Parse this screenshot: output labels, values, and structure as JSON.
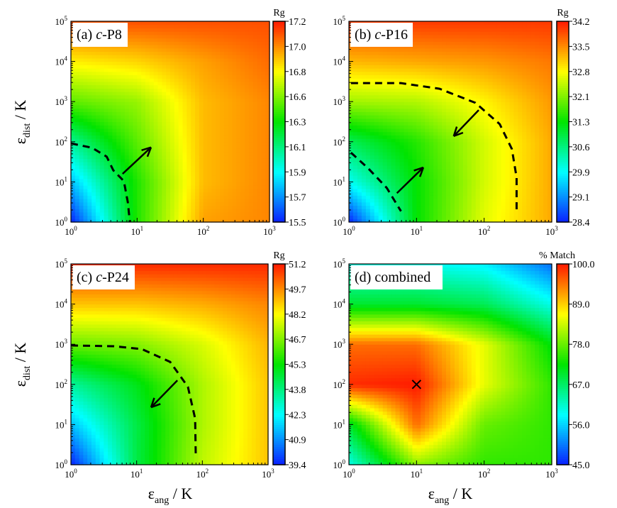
{
  "chart_data": [
    {
      "type": "heatmap",
      "panel_label": "(a) c-P8",
      "panel_prefix": "(a) ",
      "panel_italic": "c",
      "panel_suffix": "-P8",
      "colorbar_title": "Rg",
      "colorbar_range": [
        15.5,
        17.2
      ],
      "colorbar_ticks": [
        "17.2",
        "17.0",
        "16.8",
        "16.6",
        "16.3",
        "16.1",
        "15.9",
        "15.7",
        "15.5"
      ],
      "x_log10": [
        0,
        1,
        2,
        3
      ],
      "y_log10": [
        0,
        1,
        2,
        3,
        4,
        5
      ],
      "z": [
        [
          15.5,
          16.4,
          16.95,
          17.0
        ],
        [
          15.8,
          16.4,
          16.9,
          17.0
        ],
        [
          16.1,
          16.5,
          16.9,
          17.0
        ],
        [
          16.5,
          16.6,
          16.9,
          17.0
        ],
        [
          16.8,
          16.85,
          16.95,
          17.05
        ],
        [
          17.1,
          17.1,
          17.1,
          17.1
        ]
      ],
      "dashed_curves": [
        [
          [
            0,
            1.96
          ],
          [
            0.32,
            1.85
          ],
          [
            0.54,
            1.63
          ],
          [
            0.64,
            1.29
          ],
          [
            0.8,
            1.02
          ],
          [
            0.86,
            0.49
          ],
          [
            0.89,
            0
          ]
        ]
      ],
      "arrows": [
        [
          [
            0.78,
            1.2
          ],
          [
            1.21,
            1.86
          ]
        ]
      ],
      "markers": []
    },
    {
      "type": "heatmap",
      "panel_label": "(b) c-P16",
      "panel_prefix": "(b) ",
      "panel_italic": "c",
      "panel_suffix": "-P16",
      "colorbar_title": "Rg",
      "colorbar_range": [
        28.4,
        34.2
      ],
      "colorbar_ticks": [
        "34.2",
        "33.5",
        "32.8",
        "32.1",
        "31.3",
        "30.6",
        "29.9",
        "29.1",
        "28.4"
      ],
      "x_log10": [
        0,
        1,
        2,
        3
      ],
      "y_log10": [
        0,
        1,
        2,
        3,
        4,
        5
      ],
      "z": [
        [
          28.4,
          31.3,
          32.6,
          33.3
        ],
        [
          29.9,
          31.3,
          32.5,
          33.3
        ],
        [
          30.8,
          31.5,
          32.5,
          33.3
        ],
        [
          32.2,
          32.3,
          32.8,
          33.4
        ],
        [
          33.2,
          33.3,
          33.4,
          33.6
        ],
        [
          34.0,
          34.0,
          34.0,
          34.0
        ]
      ],
      "dashed_curves": [
        [
          [
            0.03,
            3.46
          ],
          [
            0.77,
            3.46
          ],
          [
            1.34,
            3.32
          ],
          [
            1.87,
            2.97
          ],
          [
            2.23,
            2.44
          ],
          [
            2.41,
            1.82
          ],
          [
            2.48,
            1.11
          ],
          [
            2.48,
            0.23
          ]
        ],
        [
          [
            0.03,
            1.73
          ],
          [
            0.29,
            1.33
          ],
          [
            0.56,
            0.85
          ],
          [
            0.77,
            0.27
          ]
        ]
      ],
      "arrows": [
        [
          [
            1.92,
            2.79
          ],
          [
            1.55,
            2.14
          ]
        ],
        [
          [
            0.71,
            0.72
          ],
          [
            1.1,
            1.36
          ]
        ]
      ],
      "markers": []
    },
    {
      "type": "heatmap",
      "panel_label": "(c) c-P24",
      "panel_prefix": "(c) ",
      "panel_italic": "c",
      "panel_suffix": "-P24",
      "colorbar_title": "Rg",
      "colorbar_range": [
        39.4,
        51.2
      ],
      "colorbar_ticks": [
        "51.2",
        "49.7",
        "48.2",
        "46.7",
        "45.3",
        "43.8",
        "42.3",
        "40.9",
        "39.4"
      ],
      "x_log10": [
        0,
        1,
        2,
        3
      ],
      "y_log10": [
        0,
        1,
        2,
        3,
        4,
        5
      ],
      "z": [
        [
          39.4,
          44.5,
          47.5,
          49.0
        ],
        [
          41.5,
          44.5,
          47.3,
          49.0
        ],
        [
          43.5,
          45.0,
          47.3,
          49.0
        ],
        [
          46.5,
          46.8,
          47.8,
          49.2
        ],
        [
          49.0,
          49.0,
          49.3,
          49.8
        ],
        [
          51.0,
          51.0,
          51.0,
          51.0
        ]
      ],
      "dashed_curves": [
        [
          [
            0,
            2.97
          ],
          [
            0.65,
            2.95
          ],
          [
            1.08,
            2.88
          ],
          [
            1.51,
            2.56
          ],
          [
            1.78,
            1.94
          ],
          [
            1.89,
            1.15
          ],
          [
            1.9,
            0.18
          ]
        ]
      ],
      "arrows": [
        [
          [
            1.62,
            2.1
          ],
          [
            1.22,
            1.43
          ]
        ]
      ],
      "markers": []
    },
    {
      "type": "heatmap",
      "panel_label": "(d) combined",
      "panel_prefix": "(d) combined",
      "panel_italic": "",
      "panel_suffix": "",
      "colorbar_title": "% Match",
      "colorbar_range": [
        45.0,
        100.0
      ],
      "colorbar_ticks": [
        "100.0",
        "89.0",
        "78.0",
        "67.0",
        "56.0",
        "45.0"
      ],
      "x_log10": [
        0,
        1,
        2,
        3
      ],
      "y_log10": [
        0,
        1,
        2,
        3,
        4,
        5
      ],
      "z": [
        [
          60,
          80,
          75,
          75
        ],
        [
          70,
          95,
          78,
          75
        ],
        [
          99,
          100,
          85,
          75
        ],
        [
          95,
          95,
          85,
          72
        ],
        [
          70,
          70,
          68,
          60
        ],
        [
          60,
          60,
          58,
          50
        ]
      ],
      "dashed_curves": [],
      "arrows": [],
      "markers": [
        [
          1,
          2
        ]
      ]
    }
  ],
  "axes": {
    "x_tick_labels": [
      "0",
      "1",
      "2",
      "3"
    ],
    "y_tick_labels": [
      "0",
      "1",
      "2",
      "3",
      "4",
      "5"
    ],
    "tick_base": "10",
    "xlabel": {
      "symbol": "ε",
      "sub": "ang",
      "unit": " / K"
    },
    "ylabel": {
      "symbol": "ε",
      "sub": "dist",
      "unit": " / K"
    }
  },
  "colors": {
    "colormap": [
      "#0a1eff",
      "#00ffff",
      "#00e400",
      "#ffff00",
      "#ff1a00"
    ]
  }
}
